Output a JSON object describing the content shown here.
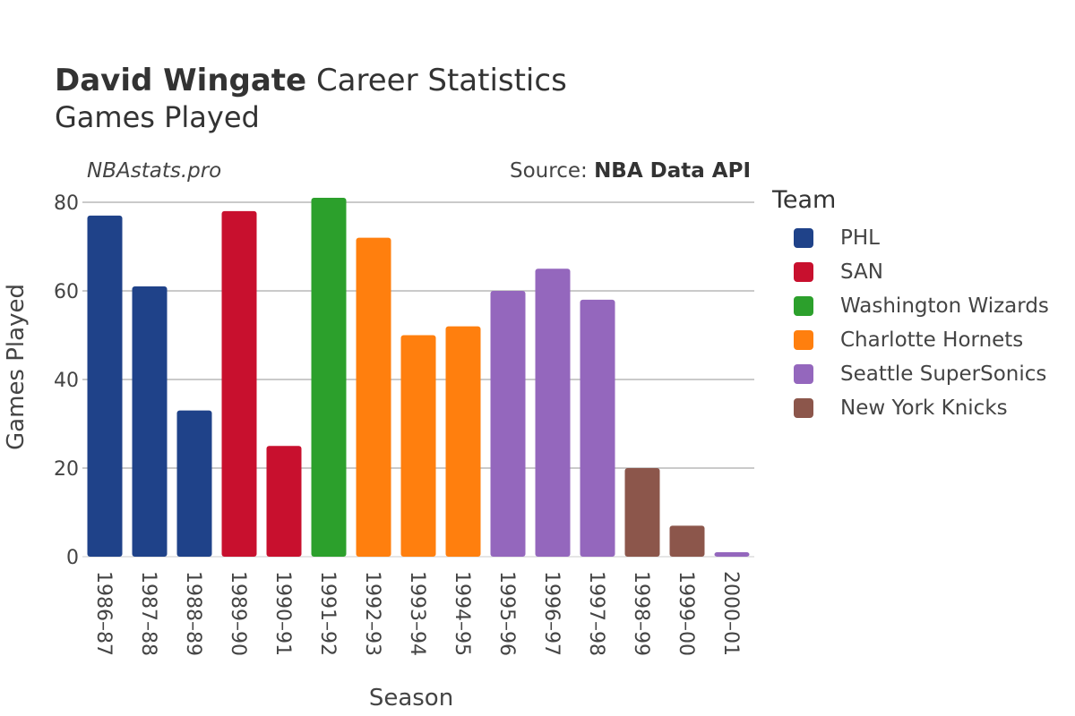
{
  "header": {
    "player": "David Wingate",
    "title_rest": "Career Statistics",
    "subtitle": "Games Played",
    "site": "NBAstats.pro",
    "source_prefix": "Source:",
    "source_name": "NBA Data API"
  },
  "chart_data": {
    "type": "bar",
    "xlabel": "Season",
    "ylabel": "Games Played",
    "ylim": [
      0,
      80
    ],
    "yticks": [
      0,
      20,
      40,
      60,
      80
    ],
    "grid": true,
    "legend_title": "Team",
    "legend_placement": "right",
    "categories": [
      "1986–87",
      "1987–88",
      "1988–89",
      "1989–90",
      "1990–91",
      "1991–92",
      "1992–93",
      "1993–94",
      "1994–95",
      "1995–96",
      "1996–97",
      "1997–98",
      "1998–99",
      "1999–00",
      "2000–01"
    ],
    "values": [
      77,
      61,
      33,
      78,
      25,
      81,
      72,
      50,
      52,
      60,
      65,
      58,
      20,
      7,
      1
    ],
    "teams": [
      "PHL",
      "PHL",
      "PHL",
      "SAN",
      "SAN",
      "Washington Wizards",
      "Charlotte Hornets",
      "Charlotte Hornets",
      "Charlotte Hornets",
      "Seattle SuperSonics",
      "Seattle SuperSonics",
      "Seattle SuperSonics",
      "New York Knicks",
      "New York Knicks",
      "Seattle SuperSonics"
    ],
    "legend": [
      {
        "name": "PHL",
        "color": "#1f4289"
      },
      {
        "name": "SAN",
        "color": "#c8102e"
      },
      {
        "name": "Washington Wizards",
        "color": "#2ca02c"
      },
      {
        "name": "Charlotte Hornets",
        "color": "#ff7f0e"
      },
      {
        "name": "Seattle SuperSonics",
        "color": "#9467bd"
      },
      {
        "name": "New York Knicks",
        "color": "#8c564b"
      }
    ]
  }
}
